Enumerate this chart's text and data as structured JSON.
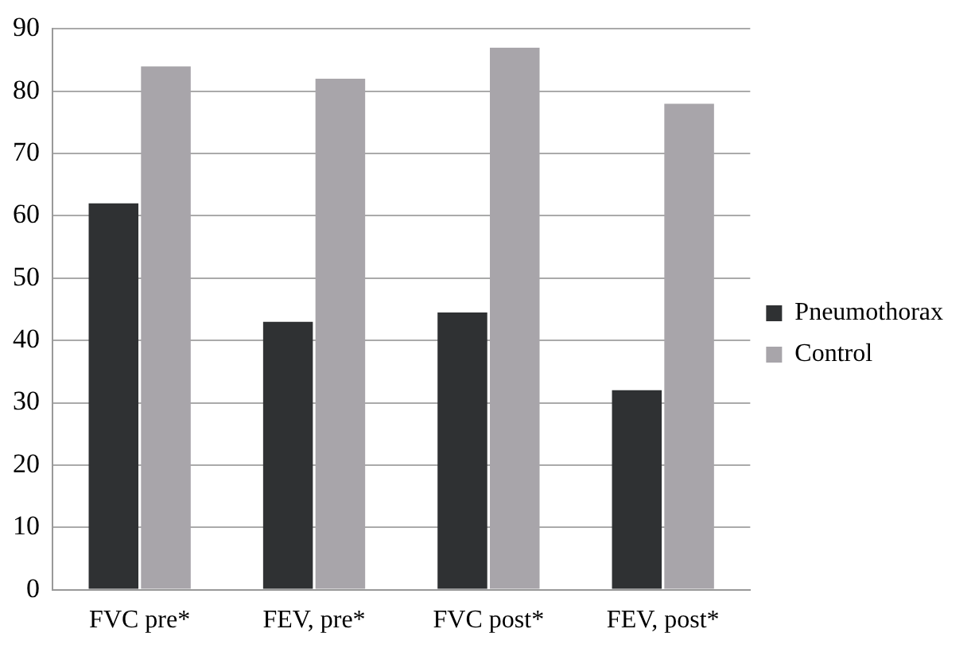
{
  "chart_data": {
    "type": "bar",
    "categories": [
      "FVC pre*",
      "FEV, pre*",
      "FVC post*",
      "FEV, post*"
    ],
    "series": [
      {
        "name": "Pneumothorax",
        "color": "#2f3133",
        "values": [
          62,
          43,
          44.5,
          32
        ]
      },
      {
        "name": "Control",
        "color": "#a8a5aa",
        "values": [
          84,
          82,
          87,
          78
        ]
      }
    ],
    "ylim": [
      0,
      90
    ],
    "yticks": [
      0,
      10,
      20,
      30,
      40,
      50,
      60,
      70,
      80,
      90
    ],
    "grid": "y",
    "legend": "right"
  }
}
